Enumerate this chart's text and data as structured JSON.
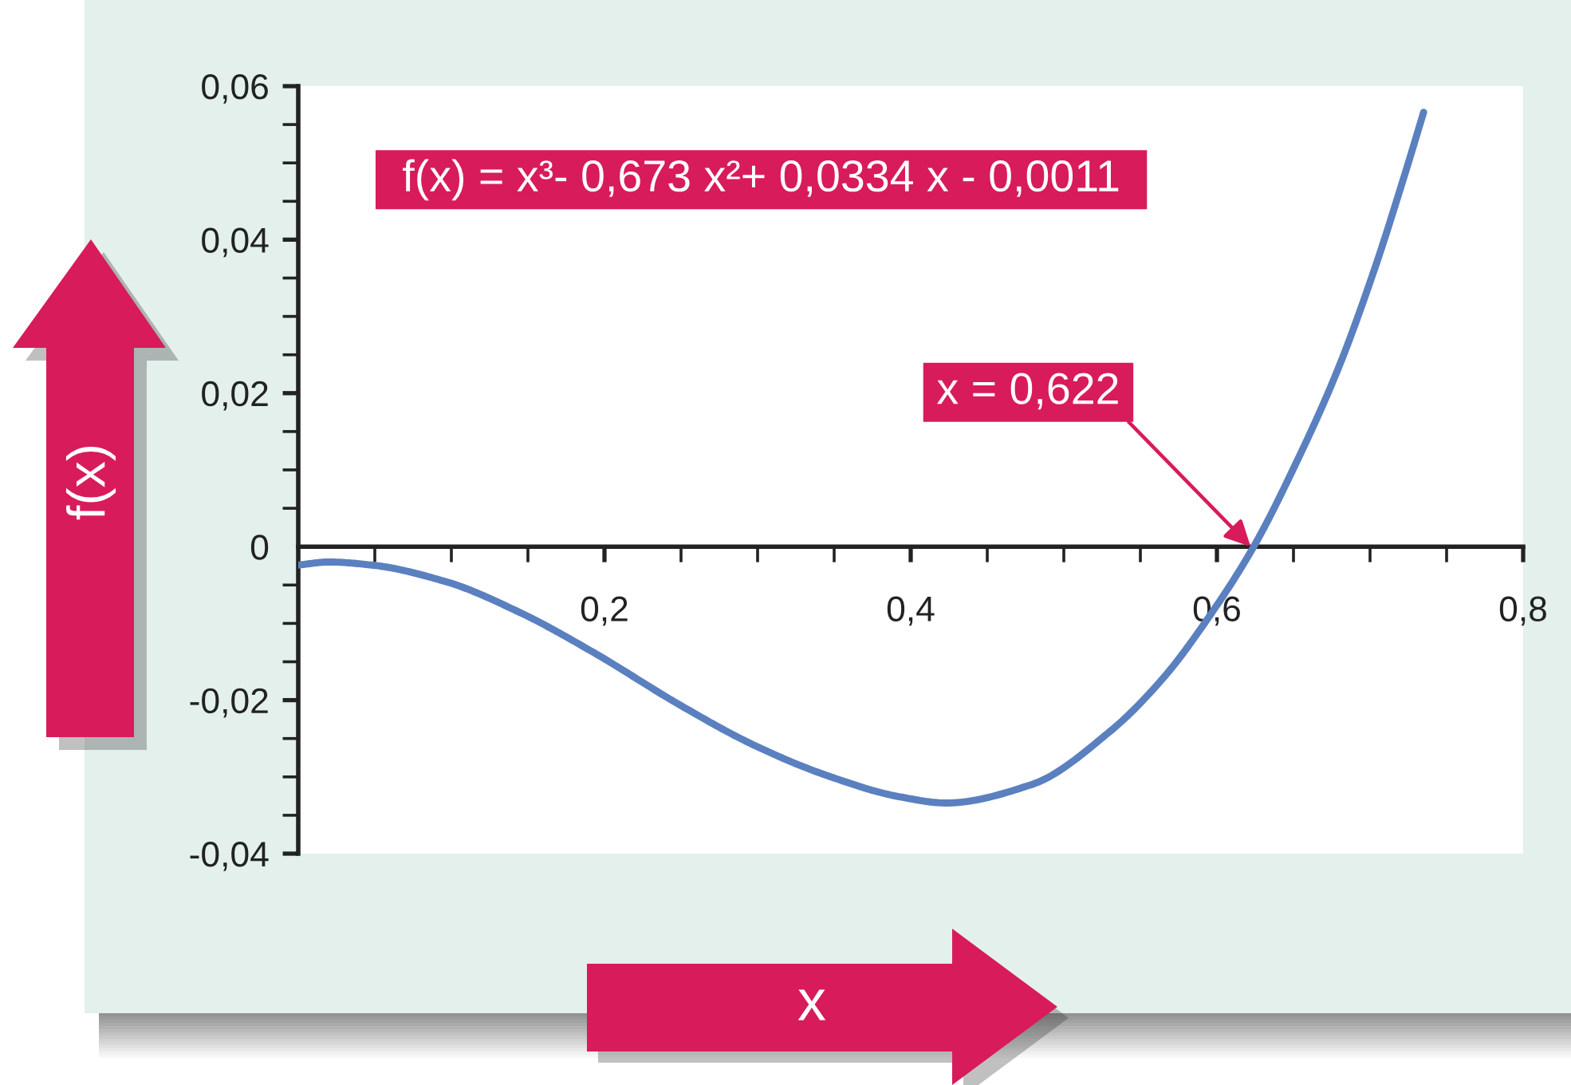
{
  "chart_data": {
    "type": "line",
    "xlabel": "x",
    "ylabel": "f(x)",
    "series": [
      {
        "color": "#5b80c0",
        "x": [
          0,
          0.02,
          0.048,
          0.097,
          0.145,
          0.193,
          0.249,
          0.297,
          0.345,
          0.393,
          0.423,
          0.479,
          0.53,
          0.565,
          0.596,
          0.624,
          0.651,
          0.679,
          0.703,
          0.723,
          0.735
        ],
        "values": [
          -0.0024,
          -0.002,
          -0.0024,
          -0.0046,
          -0.0086,
          -0.0138,
          -0.0206,
          -0.0258,
          -0.0298,
          -0.0326,
          -0.0334,
          -0.031,
          -0.0241,
          -0.0171,
          -0.0088,
          0,
          0.0106,
          0.0231,
          0.0362,
          0.0487,
          0.0566
        ]
      }
    ],
    "xlim": [
      0,
      0.8
    ],
    "ylim": [
      -0.04,
      0.06
    ],
    "xticks": [
      {
        "value": 0.05,
        "label": null
      },
      {
        "value": 0.1,
        "label": null
      },
      {
        "value": 0.15,
        "label": null
      },
      {
        "value": 0.2,
        "label": "0,2"
      },
      {
        "value": 0.25,
        "label": null
      },
      {
        "value": 0.3,
        "label": null
      },
      {
        "value": 0.35,
        "label": null
      },
      {
        "value": 0.4,
        "label": "0,4"
      },
      {
        "value": 0.45,
        "label": null
      },
      {
        "value": 0.5,
        "label": null
      },
      {
        "value": 0.55,
        "label": null
      },
      {
        "value": 0.6,
        "label": "0,6"
      },
      {
        "value": 0.65,
        "label": null
      },
      {
        "value": 0.7,
        "label": null
      },
      {
        "value": 0.75,
        "label": null
      },
      {
        "value": 0.8,
        "label": "0,8"
      }
    ],
    "yticks": [
      {
        "value": -0.04,
        "label": "-0,04"
      },
      {
        "value": -0.035,
        "label": null
      },
      {
        "value": -0.03,
        "label": null
      },
      {
        "value": -0.025,
        "label": null
      },
      {
        "value": -0.02,
        "label": "-0,02"
      },
      {
        "value": -0.015,
        "label": null
      },
      {
        "value": -0.01,
        "label": null
      },
      {
        "value": -0.005,
        "label": null
      },
      0,
      {
        "value": 0.005,
        "label": null
      },
      {
        "value": 0.01,
        "label": null
      },
      {
        "value": 0.015,
        "label": null
      },
      {
        "value": 0.02,
        "label": "0,02"
      },
      {
        "value": 0.025,
        "label": null
      },
      {
        "value": 0.03,
        "label": null
      },
      {
        "value": 0.035,
        "label": null
      },
      {
        "value": 0.04,
        "label": "0,04"
      },
      {
        "value": 0.045,
        "label": null
      },
      {
        "value": 0.05,
        "label": null
      },
      {
        "value": 0.055,
        "label": null
      },
      {
        "value": 0.06,
        "label": "0,06"
      }
    ],
    "annotations": [
      "f(x) = x³- 0,673 x²+ 0,0334 x - 0,0011",
      {
        "text": "x = 0,622",
        "x": 0.622,
        "y": 0
      }
    ]
  }
}
